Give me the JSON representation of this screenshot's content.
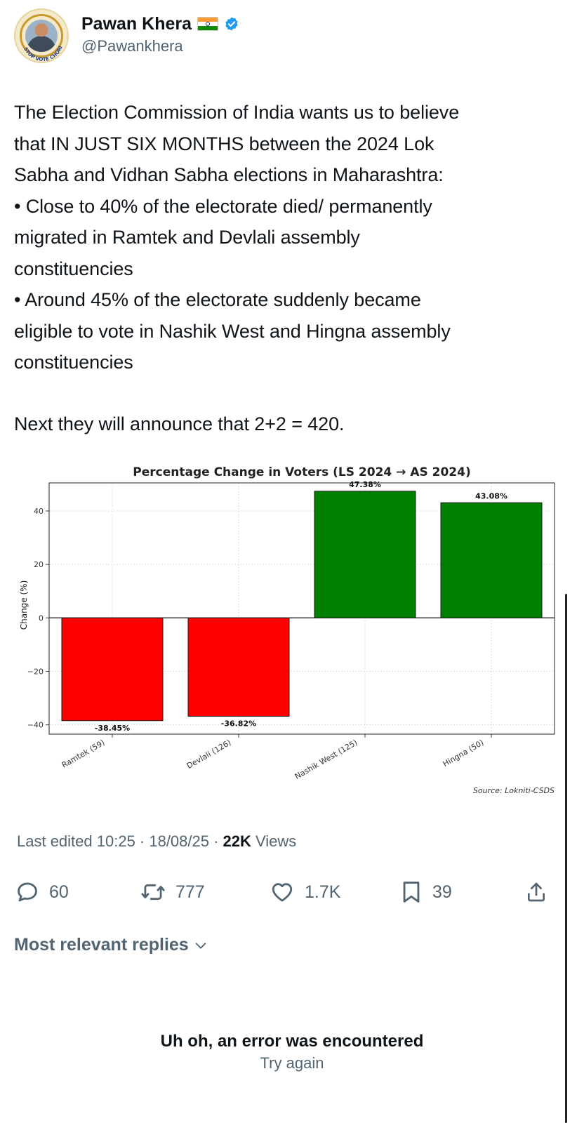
{
  "author": {
    "display_name": "Pawan Khera",
    "handle": "@Pawankhera",
    "avatar_text": "STOP VOTE CHORI"
  },
  "tweet": {
    "lines": [
      "The Election Commission of India wants us to believe",
      "that IN JUST SIX MONTHS between the 2024 Lok",
      "Sabha and Vidhan Sabha elections in Maharashtra:",
      "• Close to 40% of the electorate died/ permanently",
      "migrated in Ramtek and Devlali assembly",
      "constituencies",
      "• Around 45% of the electorate suddenly became",
      "eligible to vote in Nashik West and Hingna assembly",
      "constituencies"
    ],
    "closing": "Next they will announce that 2+2 = 420."
  },
  "chart_data": {
    "type": "bar",
    "title": "Percentage Change in Voters (LS 2024 → AS 2024)",
    "ylabel": "Change (%)",
    "xlabel": "",
    "categories": [
      "Ramtek (59)",
      "Devlali (126)",
      "Nashik West (125)",
      "Hingna (50)"
    ],
    "values": [
      -38.45,
      -36.82,
      47.38,
      43.08
    ],
    "data_labels": [
      "-38.45%",
      "-36.82%",
      "47.38%",
      "43.08%"
    ],
    "colors": [
      "#ff0000",
      "#ff0000",
      "#008000",
      "#008000"
    ],
    "yticks": [
      -40,
      -20,
      0,
      20,
      40
    ],
    "ytick_labels": [
      "−40",
      "−20",
      "0",
      "20",
      "40"
    ],
    "ylim": [
      -43.5,
      50.5
    ],
    "grid": true,
    "source": "Source: Lokniti-CSDS"
  },
  "meta": {
    "edited": "Last edited 10:25 · 18/08/25 · ",
    "views_count": "22K",
    "views_label": " Views"
  },
  "actions": {
    "replies": "60",
    "reposts": "777",
    "likes": "1.7K",
    "bookmarks": "39"
  },
  "replies": {
    "sort_label": "Most relevant replies"
  },
  "error": {
    "title": "Uh oh, an error was encountered",
    "retry": "Try again"
  },
  "colors": {
    "verified": "#1d9bf0",
    "secondary_text": "#536471",
    "primary_text": "#0f1419"
  }
}
